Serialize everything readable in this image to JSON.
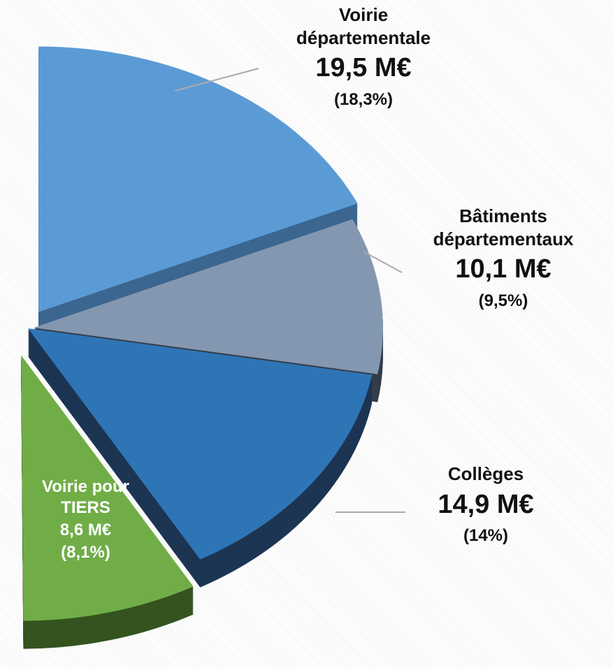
{
  "chart_data": {
    "type": "pie",
    "categories": [
      "Voirie départementale",
      "Bâtiments départementaux",
      "Collèges",
      "Voirie pour TIERS"
    ],
    "values": [
      18.3,
      9.5,
      14,
      8.1
    ],
    "value_labels": [
      "(18,3%)",
      "(9,5%)",
      "(14%)",
      "(8,1%)"
    ],
    "amounts": [
      19.5,
      10.1,
      14.9,
      8.6
    ],
    "amount_labels": [
      "19,5 M€",
      "10,1 M€",
      "14,9 M€",
      "8,6 M€"
    ],
    "colors": [
      "#5b9bd5",
      "#8497b0",
      "#2e75b6",
      "#70ad47"
    ],
    "side_colors": [
      "#3b6690",
      "#343d4a",
      "#1c3553",
      "#34531f"
    ]
  }
}
